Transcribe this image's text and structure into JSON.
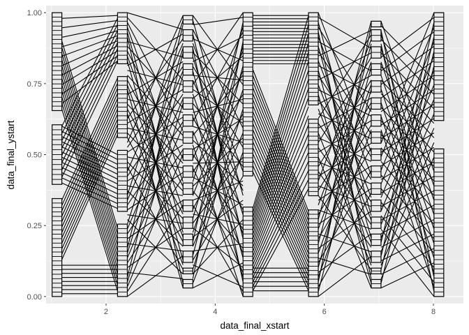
{
  "chart_data": {
    "type": "parallel-sets",
    "title": "",
    "xlabel": "data_final_xstart",
    "ylabel": "data_final_ystart",
    "xlim": [
      0.9,
      8.55
    ],
    "ylim": [
      -0.025,
      1.025
    ],
    "x_ticks": [
      2,
      4,
      6,
      8
    ],
    "x_tick_labels": [
      "2",
      "4",
      "6",
      "8"
    ],
    "y_ticks": [
      0,
      0.25,
      0.5,
      0.75,
      1
    ],
    "y_tick_labels": [
      "0.00",
      "0.25",
      "0.50",
      "0.75",
      "1.00"
    ],
    "grid": true,
    "panel_background": "#ebebeb",
    "grid_color": "#ffffff",
    "stroke_color": "#000000",
    "axes": [
      {
        "x": 1.1,
        "segments": [
          [
            0.0,
            0.345,
            22
          ],
          [
            0.395,
            0.605,
            12
          ],
          [
            0.655,
            1.0,
            22
          ]
        ]
      },
      {
        "x": 2.3,
        "segments": [
          [
            0.0,
            0.255,
            16
          ],
          [
            0.3,
            0.515,
            14
          ],
          [
            0.56,
            0.775,
            14
          ],
          [
            0.82,
            1.0,
            12
          ]
        ]
      },
      {
        "x": 3.5,
        "segments": [
          [
            0.03,
            0.06,
            2
          ],
          [
            0.08,
            0.1,
            2
          ],
          [
            0.12,
            0.16,
            2
          ],
          [
            0.18,
            0.22,
            2
          ],
          [
            0.24,
            0.28,
            2
          ],
          [
            0.3,
            0.34,
            2
          ],
          [
            0.36,
            0.4,
            2
          ],
          [
            0.42,
            0.46,
            2
          ],
          [
            0.48,
            0.52,
            2
          ],
          [
            0.54,
            0.58,
            2
          ],
          [
            0.6,
            0.64,
            2
          ],
          [
            0.66,
            0.7,
            2
          ],
          [
            0.72,
            0.76,
            2
          ],
          [
            0.78,
            0.82,
            2
          ],
          [
            0.84,
            0.88,
            2
          ],
          [
            0.9,
            0.94,
            2
          ],
          [
            0.96,
            0.99,
            2
          ]
        ]
      },
      {
        "x": 4.6,
        "segments": [
          [
            0.0,
            0.315,
            20
          ],
          [
            0.425,
            1.0,
            36
          ]
        ]
      },
      {
        "x": 5.8,
        "segments": [
          [
            0.0,
            0.305,
            20
          ],
          [
            0.355,
            0.625,
            18
          ],
          [
            0.675,
            1.0,
            22
          ]
        ]
      },
      {
        "x": 6.95,
        "segments": [
          [
            0.03,
            0.06,
            2
          ],
          [
            0.08,
            0.1,
            2
          ],
          [
            0.12,
            0.16,
            2
          ],
          [
            0.18,
            0.22,
            2
          ],
          [
            0.24,
            0.28,
            2
          ],
          [
            0.3,
            0.34,
            2
          ],
          [
            0.36,
            0.4,
            2
          ],
          [
            0.42,
            0.46,
            2
          ],
          [
            0.48,
            0.52,
            2
          ],
          [
            0.54,
            0.58,
            2
          ],
          [
            0.6,
            0.64,
            2
          ],
          [
            0.66,
            0.7,
            2
          ],
          [
            0.72,
            0.76,
            2
          ],
          [
            0.78,
            0.82,
            2
          ],
          [
            0.84,
            0.88,
            2
          ],
          [
            0.9,
            0.94,
            2
          ],
          [
            0.95,
            0.97,
            1
          ]
        ]
      },
      {
        "x": 8.1,
        "segments": [
          [
            0.0,
            0.52,
            32
          ],
          [
            0.62,
            1.0,
            24
          ]
        ]
      }
    ],
    "bundles": [
      {
        "from": [
          1.1,
          0.68,
          0.98
        ],
        "to": [
          2.3,
          0.83,
          0.99
        ],
        "n": 10
      },
      {
        "from": [
          1.1,
          0.66,
          0.9
        ],
        "to": [
          2.3,
          0.02,
          0.24
        ],
        "n": 12
      },
      {
        "from": [
          1.1,
          0.4,
          0.6
        ],
        "to": [
          2.3,
          0.31,
          0.5
        ],
        "n": 12
      },
      {
        "from": [
          1.1,
          0.01,
          0.11
        ],
        "to": [
          2.3,
          0.01,
          0.11
        ],
        "n": 8
      },
      {
        "from": [
          1.1,
          0.13,
          0.34
        ],
        "to": [
          2.3,
          0.57,
          0.77
        ],
        "n": 12
      },
      {
        "from": [
          1.1,
          0.42,
          0.6
        ],
        "to": [
          2.3,
          0.83,
          0.98
        ],
        "n": 8
      },
      {
        "from": [
          2.3,
          0.0,
          1.0
        ],
        "to": [
          3.5,
          0.03,
          0.99
        ],
        "n": 60,
        "shuffle": 11
      },
      {
        "from": [
          3.5,
          0.03,
          0.99
        ],
        "to": [
          4.6,
          0.0,
          1.0
        ],
        "n": 60,
        "shuffle": 23
      },
      {
        "from": [
          4.6,
          0.82,
          0.99
        ],
        "to": [
          5.8,
          0.82,
          0.99
        ],
        "n": 16
      },
      {
        "from": [
          4.6,
          0.44,
          0.8
        ],
        "to": [
          5.8,
          0.02,
          0.3
        ],
        "n": 18
      },
      {
        "from": [
          4.6,
          0.02,
          0.31
        ],
        "to": [
          5.8,
          0.38,
          0.99
        ],
        "n": 20
      },
      {
        "from": [
          4.6,
          0.02,
          0.1
        ],
        "to": [
          5.8,
          0.02,
          0.1
        ],
        "n": 6
      },
      {
        "from": [
          5.8,
          0.0,
          1.0
        ],
        "to": [
          6.95,
          0.03,
          0.97
        ],
        "n": 60,
        "shuffle": 37
      },
      {
        "from": [
          6.95,
          0.03,
          0.97
        ],
        "to": [
          8.1,
          0.0,
          1.0
        ],
        "n": 60,
        "shuffle": 41
      }
    ]
  }
}
